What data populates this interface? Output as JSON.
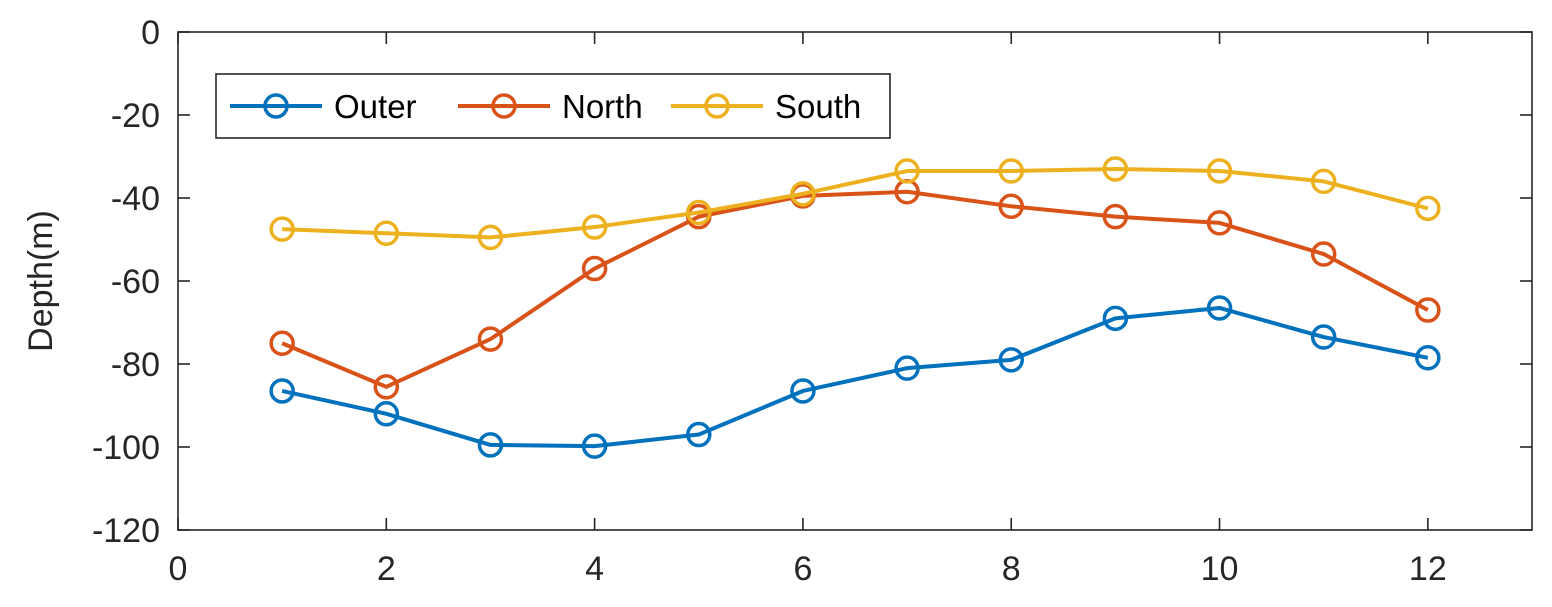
{
  "chart_data": {
    "type": "line",
    "title": "",
    "xlabel": "",
    "ylabel": "Depth(m)",
    "xlim": [
      0,
      13
    ],
    "ylim": [
      -120,
      0
    ],
    "xticks": [
      0,
      2,
      4,
      6,
      8,
      10,
      12
    ],
    "yticks": [
      0,
      -20,
      -40,
      -60,
      -80,
      -100,
      -120
    ],
    "grid": false,
    "legend_position": "top-left",
    "marker": "circle",
    "x": [
      1,
      2,
      3,
      4,
      5,
      6,
      7,
      8,
      9,
      10,
      11,
      12
    ],
    "series": [
      {
        "name": "Outer",
        "color": "#0072BD",
        "values": [
          -86.5,
          -92,
          -99.5,
          -99.8,
          -97,
          -86.5,
          -81,
          -79,
          -69,
          -66.5,
          -73.5,
          -78.5
        ]
      },
      {
        "name": "North",
        "color": "#D95319",
        "values": [
          -75,
          -85.5,
          -74,
          -57,
          -44.5,
          -39.5,
          -38.5,
          -42,
          -44.5,
          -46,
          -53.5,
          -67
        ]
      },
      {
        "name": "South",
        "color": "#EDB120",
        "values": [
          -47.5,
          -48.5,
          -49.5,
          -47,
          -43.5,
          -39,
          -33.5,
          -33.5,
          -33,
          -33.5,
          -36,
          -42.5
        ]
      }
    ]
  }
}
